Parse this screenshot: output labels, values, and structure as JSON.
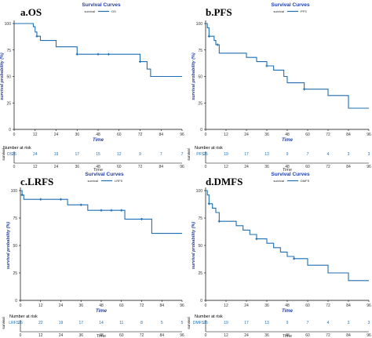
{
  "colors": {
    "curve": "#1f6fb4",
    "title": "#1f3ea8",
    "axis": "#000000"
  },
  "chart_data": [
    {
      "type": "line",
      "panel_label": "a.OS",
      "title": "Survival Curves",
      "legend_title": "survival",
      "series": [
        {
          "name": "OS",
          "x": [
            0,
            8,
            11,
            12,
            13,
            15,
            19,
            24,
            36,
            48,
            60,
            72,
            75,
            76,
            78,
            96
          ],
          "y": [
            100,
            100,
            97,
            92,
            88,
            84,
            84,
            78,
            71,
            71,
            71,
            64,
            64,
            57,
            50,
            50
          ]
        }
      ],
      "censor_x": [
        13,
        36,
        48,
        54,
        72
      ],
      "ylabel": "survival probability (%)",
      "xlabel": "Time",
      "xlim": [
        0,
        96
      ],
      "ylim": [
        0,
        100
      ],
      "xticks": [
        "0",
        "12",
        "24",
        "36",
        "48",
        "60",
        "72",
        "84",
        "96"
      ],
      "yticks": [
        "0",
        "25",
        "50",
        "75",
        "100"
      ],
      "risk_title": "Number at risk",
      "risk_strata": "OS",
      "risk_side_label": "survival",
      "risk_counts": [
        "26",
        "24",
        "19",
        "17",
        "15",
        "12",
        "9",
        "7",
        "7"
      ]
    },
    {
      "type": "line",
      "panel_label": "b.PFS",
      "title": "Survival Curves",
      "legend_title": "survival",
      "series": [
        {
          "name": "PFS",
          "x": [
            0,
            1,
            2,
            4,
            5,
            6,
            8,
            12,
            24,
            30,
            36,
            40,
            46,
            48,
            58,
            60,
            72,
            84,
            96
          ],
          "y": [
            100,
            96,
            88,
            88,
            84,
            80,
            72,
            72,
            68,
            64,
            60,
            56,
            50,
            44,
            38,
            38,
            32,
            20,
            20
          ]
        }
      ],
      "censor_x": [
        2,
        7,
        36,
        58
      ],
      "ylabel": "survival probability (%)",
      "xlabel": "Time",
      "xlim": [
        0,
        96
      ],
      "ylim": [
        0,
        100
      ],
      "xticks": [
        "0",
        "12",
        "24",
        "36",
        "48",
        "60",
        "72",
        "84",
        "96"
      ],
      "yticks": [
        "0",
        "25",
        "50",
        "75",
        "100"
      ],
      "risk_title": "Number at risk",
      "risk_strata": "PFS",
      "risk_side_label": "survival",
      "risk_counts": [
        "26",
        "19",
        "17",
        "13",
        "9",
        "7",
        "4",
        "3",
        "3"
      ]
    },
    {
      "type": "line",
      "panel_label": "c.LRFS",
      "title": "Survival Curves",
      "legend_title": "survival",
      "series": [
        {
          "name": "LRFS",
          "x": [
            0,
            1,
            2,
            12,
            24,
            28,
            36,
            40,
            48,
            60,
            62,
            72,
            78,
            96
          ],
          "y": [
            100,
            96,
            92,
            92,
            92,
            87,
            87,
            82,
            82,
            82,
            74,
            74,
            61,
            61
          ]
        }
      ],
      "censor_x": [
        1,
        12,
        24,
        36,
        48,
        54,
        60,
        72
      ],
      "ylabel": "survival probability (%)",
      "xlabel": "Time",
      "xlim": [
        0,
        96
      ],
      "ylim": [
        0,
        100
      ],
      "xticks": [
        "0",
        "12",
        "24",
        "36",
        "48",
        "60",
        "72",
        "84",
        "96"
      ],
      "yticks": [
        "0",
        "25",
        "50",
        "75",
        "100"
      ],
      "risk_title": "Number at risk",
      "risk_strata": "LRFS",
      "risk_side_label": "survival",
      "risk_counts": [
        "26",
        "22",
        "19",
        "17",
        "14",
        "11",
        "8",
        "5",
        "5"
      ]
    },
    {
      "type": "line",
      "panel_label": "d.DMFS",
      "title": "Survival Curves",
      "legend_title": "survival",
      "series": [
        {
          "name": "DMFS",
          "x": [
            0,
            1,
            2,
            4,
            6,
            8,
            18,
            22,
            26,
            30,
            36,
            40,
            44,
            48,
            52,
            60,
            72,
            84,
            96
          ],
          "y": [
            100,
            96,
            88,
            84,
            80,
            72,
            68,
            64,
            60,
            56,
            52,
            48,
            44,
            40,
            38,
            32,
            25,
            18,
            18
          ]
        }
      ],
      "censor_x": [
        2,
        8,
        30,
        52
      ],
      "ylabel": "survival probability (%)",
      "xlabel": "Time",
      "xlim": [
        0,
        96
      ],
      "ylim": [
        0,
        100
      ],
      "xticks": [
        "0",
        "12",
        "24",
        "36",
        "48",
        "60",
        "72",
        "84",
        "96"
      ],
      "yticks": [
        "0",
        "25",
        "50",
        "75",
        "100"
      ],
      "risk_title": "Number at risk",
      "risk_strata": "DMFS",
      "risk_side_label": "survival",
      "risk_counts": [
        "26",
        "19",
        "17",
        "13",
        "9",
        "7",
        "4",
        "3",
        "3"
      ]
    }
  ]
}
